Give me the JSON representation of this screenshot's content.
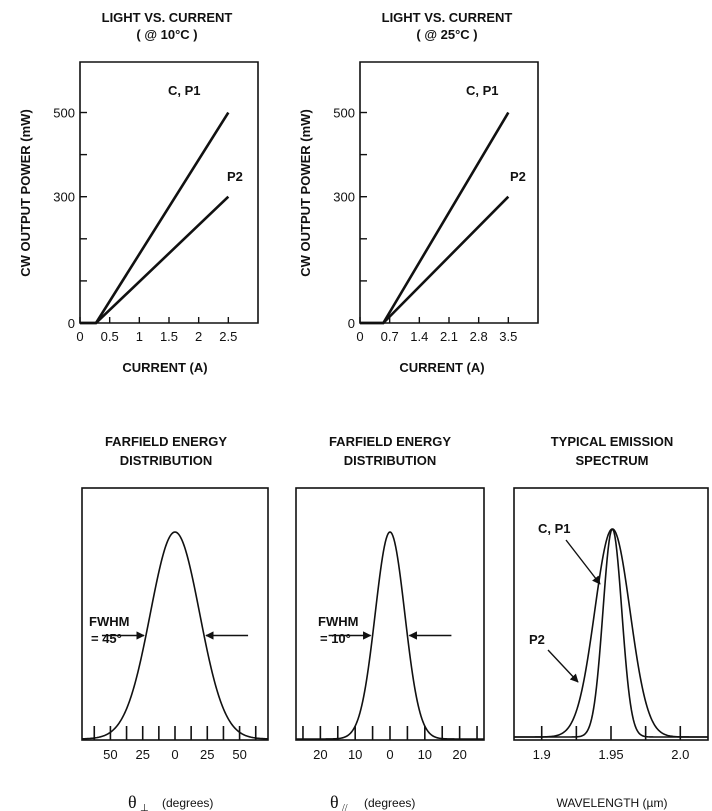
{
  "colors": {
    "ink": "#111111",
    "background": "#ffffff"
  },
  "chart_data": [
    {
      "id": "lc10",
      "type": "line",
      "title": "LIGHT VS. CURRENT",
      "subtitle": "( @ 10°C )",
      "xlabel": "CURRENT (A)",
      "ylabel": "CW OUTPUT POWER (mW)",
      "xlim": [
        0,
        3.0
      ],
      "ylim": [
        0,
        620
      ],
      "xticks": [
        "0",
        "0.5",
        "1",
        "1.5",
        "2",
        "2.5"
      ],
      "xtick_values": [
        0,
        0.5,
        1,
        1.5,
        2,
        2.5
      ],
      "yticks": [
        "0",
        "300",
        "500"
      ],
      "ytick_values": [
        0,
        300,
        500
      ],
      "minor_yticks": [
        100,
        200,
        400
      ],
      "series": [
        {
          "name": "C, P1",
          "x": [
            0,
            0.27,
            2.5
          ],
          "y": [
            0,
            0,
            500
          ]
        },
        {
          "name": "P2",
          "x": [
            0,
            0.27,
            2.5
          ],
          "y": [
            0,
            0,
            300
          ]
        }
      ],
      "grid": false
    },
    {
      "id": "lc25",
      "type": "line",
      "title": "LIGHT VS. CURRENT",
      "subtitle": "( @ 25°C )",
      "xlabel": "CURRENT (A)",
      "ylabel": "CW OUTPUT POWER (mW)",
      "xlim": [
        0,
        4.2
      ],
      "ylim": [
        0,
        620
      ],
      "xticks": [
        "0",
        "0.7",
        "1.4",
        "2.1",
        "2.8",
        "3.5"
      ],
      "xtick_values": [
        0,
        0.7,
        1.4,
        2.1,
        2.8,
        3.5
      ],
      "yticks": [
        "0",
        "300",
        "500"
      ],
      "ytick_values": [
        0,
        300,
        500
      ],
      "minor_yticks": [
        100,
        200,
        400
      ],
      "series": [
        {
          "name": "C, P1",
          "x": [
            0,
            0.55,
            3.5
          ],
          "y": [
            0,
            0,
            500
          ]
        },
        {
          "name": "P2",
          "x": [
            0,
            0.55,
            3.5
          ],
          "y": [
            0,
            0,
            300
          ]
        }
      ],
      "grid": false
    },
    {
      "id": "ffperp",
      "type": "line",
      "title": "FARFIELD ENERGY",
      "subtitle": "DISTRIBUTION",
      "xlabel_symbol": "θ",
      "xlabel_sub": "⊥",
      "xlabel_unit": "(degrees)",
      "xlim": [
        -72,
        72
      ],
      "ylim": [
        0,
        1.1
      ],
      "xticks": [
        "50",
        "25",
        "0",
        "25",
        "50"
      ],
      "xtick_values": [
        -50,
        -25,
        0,
        25,
        50
      ],
      "minor_xticks": [
        -62.5,
        -37.5,
        -12.5,
        12.5,
        37.5,
        62.5
      ],
      "series": [
        {
          "center": 0,
          "fwhm": 45
        }
      ],
      "annotations": {
        "fwhm_label": "FWHM",
        "fwhm_value": "= 45°"
      },
      "grid": false
    },
    {
      "id": "ffpar",
      "type": "line",
      "title": "FARFIELD ENERGY",
      "subtitle": "DISTRIBUTION",
      "xlabel_symbol": "θ",
      "xlabel_sub": "//",
      "xlabel_unit": "(degrees)",
      "xlim": [
        -27,
        27
      ],
      "ylim": [
        0,
        1.1
      ],
      "xticks": [
        "20",
        "10",
        "0",
        "10",
        "20"
      ],
      "xtick_values": [
        -20,
        -10,
        0,
        10,
        20
      ],
      "minor_xticks": [
        -25,
        -15,
        -5,
        5,
        15,
        25
      ],
      "series": [
        {
          "center": 0,
          "fwhm": 10
        }
      ],
      "annotations": {
        "fwhm_label": "FWHM",
        "fwhm_value": "= 10°"
      },
      "grid": false
    },
    {
      "id": "spec",
      "type": "line",
      "title": "TYPICAL EMISSION",
      "subtitle": "SPECTRUM",
      "xlabel": "WAVELENGTH (µm)",
      "xlim": [
        1.88,
        2.02
      ],
      "ylim": [
        0,
        1.1
      ],
      "xticks": [
        "1.9",
        "1.95",
        "2.0"
      ],
      "xtick_values": [
        1.9,
        1.95,
        2.0
      ],
      "minor_xticks": [
        1.925,
        1.975
      ],
      "series": [
        {
          "name": "C, P1",
          "center": 1.951,
          "fwhm": 0.016
        },
        {
          "name": "P2",
          "center": 1.951,
          "fwhm": 0.03
        }
      ],
      "grid": false
    }
  ]
}
